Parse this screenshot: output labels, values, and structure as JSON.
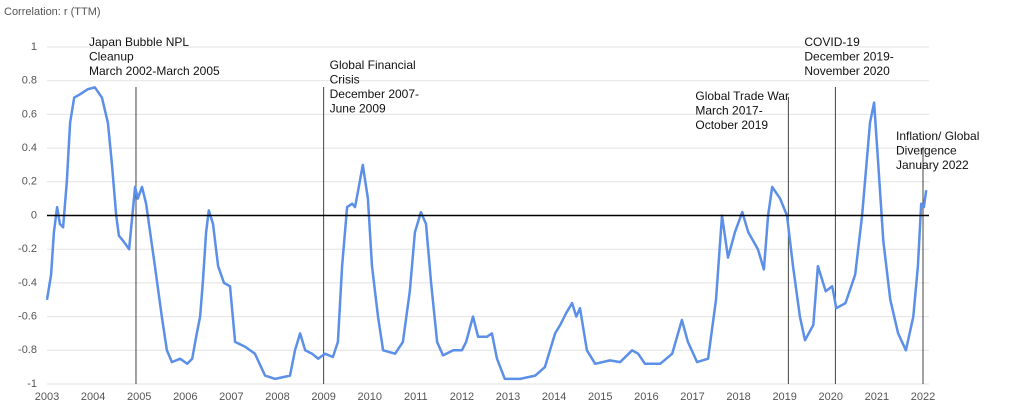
{
  "chart_data": {
    "type": "line",
    "y_axis_label": "Correlation: r (TTM)",
    "x": [
      2003.0,
      2003.09,
      2003.15,
      2003.22,
      2003.28,
      2003.35,
      2003.43,
      2003.5,
      2003.59,
      2003.72,
      2003.89,
      2004.04,
      2004.19,
      2004.32,
      2004.41,
      2004.5,
      2004.56,
      2004.65,
      2004.78,
      2004.91,
      2004.97,
      2005.06,
      2005.15,
      2005.34,
      2005.49,
      2005.6,
      2005.71,
      2005.89,
      2006.04,
      2006.15,
      2006.25,
      2006.32,
      2006.38,
      2006.45,
      2006.51,
      2006.6,
      2006.71,
      2006.84,
      2006.97,
      2007.08,
      2007.3,
      2007.51,
      2007.73,
      2007.95,
      2008.27,
      2008.38,
      2008.49,
      2008.6,
      2008.75,
      2008.88,
      2009.03,
      2009.2,
      2009.31,
      2009.4,
      2009.51,
      2009.62,
      2009.68,
      2009.75,
      2009.85,
      2009.96,
      2010.05,
      2010.18,
      2010.29,
      2010.55,
      2010.72,
      2010.87,
      2010.98,
      2011.11,
      2011.22,
      2011.33,
      2011.46,
      2011.59,
      2011.81,
      2012.0,
      2012.09,
      2012.24,
      2012.35,
      2012.54,
      2012.65,
      2012.76,
      2012.93,
      2013.26,
      2013.59,
      2013.8,
      2014.02,
      2014.13,
      2014.26,
      2014.39,
      2014.48,
      2014.56,
      2014.71,
      2014.89,
      2015.21,
      2015.43,
      2015.69,
      2015.82,
      2015.97,
      2016.3,
      2016.56,
      2016.77,
      2016.9,
      2017.1,
      2017.34,
      2017.51,
      2017.64,
      2017.77,
      2017.92,
      2018.08,
      2018.21,
      2018.42,
      2018.55,
      2018.64,
      2018.73,
      2018.9,
      2019.05,
      2019.18,
      2019.33,
      2019.44,
      2019.62,
      2019.72,
      2019.89,
      2020.03,
      2020.12,
      2020.32,
      2020.53,
      2020.68,
      2020.85,
      2020.94,
      2021.03,
      2021.14,
      2021.29,
      2021.46,
      2021.63,
      2021.79,
      2021.89,
      2021.96,
      2022.02,
      2022.07
    ],
    "series": [
      {
        "color": "#5b8fe8",
        "values": [
          -0.5,
          -0.35,
          -0.1,
          0.05,
          -0.05,
          -0.07,
          0.2,
          0.55,
          0.7,
          0.72,
          0.75,
          0.76,
          0.7,
          0.55,
          0.3,
          0.0,
          -0.12,
          -0.15,
          -0.2,
          0.17,
          0.1,
          0.17,
          0.07,
          -0.3,
          -0.6,
          -0.8,
          -0.87,
          -0.85,
          -0.88,
          -0.85,
          -0.7,
          -0.6,
          -0.4,
          -0.1,
          0.03,
          -0.05,
          -0.3,
          -0.4,
          -0.42,
          -0.75,
          -0.78,
          -0.82,
          -0.95,
          -0.97,
          -0.95,
          -0.8,
          -0.7,
          -0.8,
          -0.82,
          -0.85,
          -0.82,
          -0.84,
          -0.75,
          -0.3,
          0.05,
          0.07,
          0.05,
          0.15,
          0.3,
          0.1,
          -0.3,
          -0.6,
          -0.8,
          -0.82,
          -0.75,
          -0.45,
          -0.1,
          0.02,
          -0.05,
          -0.4,
          -0.75,
          -0.83,
          -0.8,
          -0.8,
          -0.75,
          -0.6,
          -0.72,
          -0.72,
          -0.7,
          -0.85,
          -0.97,
          -0.97,
          -0.95,
          -0.9,
          -0.7,
          -0.65,
          -0.58,
          -0.52,
          -0.6,
          -0.55,
          -0.8,
          -0.88,
          -0.86,
          -0.87,
          -0.8,
          -0.82,
          -0.88,
          -0.88,
          -0.82,
          -0.62,
          -0.75,
          -0.87,
          -0.85,
          -0.5,
          0.0,
          -0.25,
          -0.1,
          0.02,
          -0.1,
          -0.2,
          -0.32,
          0.0,
          0.17,
          0.1,
          0.0,
          -0.3,
          -0.6,
          -0.74,
          -0.65,
          -0.3,
          -0.45,
          -0.42,
          -0.55,
          -0.52,
          -0.35,
          0.0,
          0.55,
          0.67,
          0.3,
          -0.15,
          -0.5,
          -0.7,
          -0.8,
          -0.6,
          -0.3,
          0.07,
          0.05,
          0.15
        ]
      }
    ],
    "xlim": [
      2003,
      2022
    ],
    "ylim": [
      -1,
      1
    ],
    "xticks": [
      2003,
      2004,
      2005,
      2006,
      2007,
      2008,
      2009,
      2010,
      2011,
      2012,
      2013,
      2014,
      2015,
      2016,
      2017,
      2018,
      2019,
      2020,
      2021,
      2022
    ],
    "yticks": [
      -1,
      -0.8,
      -0.6,
      -0.4,
      -0.2,
      0,
      0.2,
      0.4,
      0.6,
      0.8,
      1
    ],
    "grid": true,
    "annotations": [
      {
        "x": 2004.93,
        "lines": [
          "Japan Bubble NPL",
          "Cleanup",
          "March 2002-March 2005"
        ]
      },
      {
        "x": 2009.0,
        "lines": [
          "Global Financial",
          "Crisis",
          "December 2007-",
          "June 2009"
        ]
      },
      {
        "x": 2019.08,
        "lines": [
          "Global Trade War",
          "March 2017-",
          "October 2019"
        ]
      },
      {
        "x": 2020.1,
        "lines": [
          "COVID-19",
          "December 2019-",
          "November 2020"
        ]
      },
      {
        "x": 2022.0,
        "lines": [
          "Inflation/ Global",
          "Divergence",
          "January 2022"
        ]
      }
    ]
  }
}
